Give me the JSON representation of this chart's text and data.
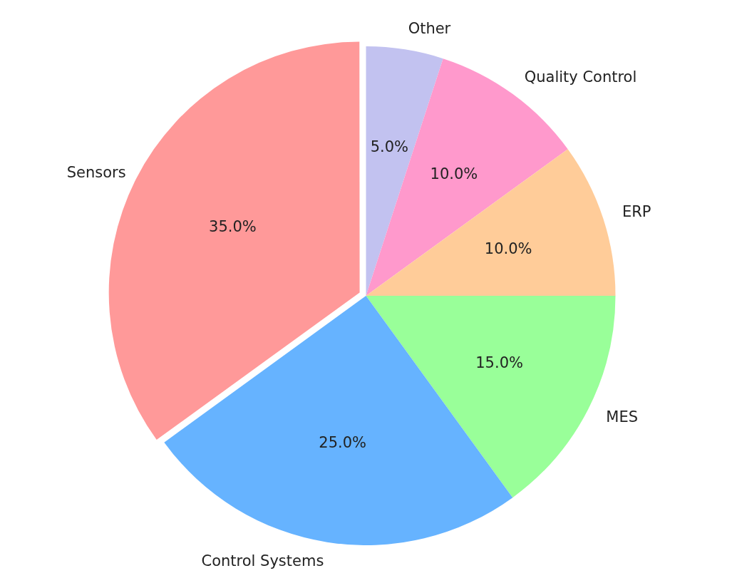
{
  "chart_data": {
    "type": "pie",
    "categories": [
      "Other",
      "Quality Control",
      "ERP",
      "MES",
      "Control Systems",
      "Sensors"
    ],
    "values": [
      5,
      10,
      10,
      15,
      25,
      35
    ],
    "colors": [
      "#c2c2f0",
      "#ff99cc",
      "#ffcc99",
      "#99ff99",
      "#66b3ff",
      "#ff9999"
    ],
    "value_labels": [
      "5.0%",
      "10.0%",
      "10.0%",
      "15.0%",
      "25.0%",
      "35.0%"
    ],
    "legend": false
  }
}
